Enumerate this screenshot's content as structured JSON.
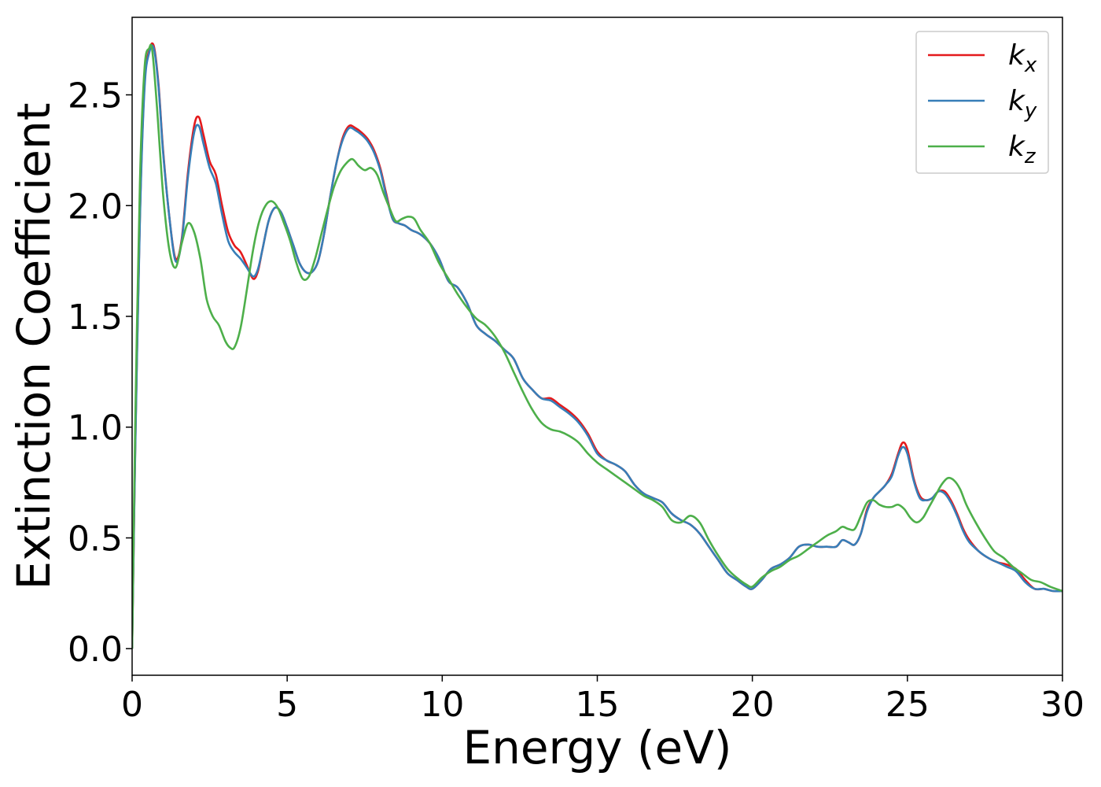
{
  "chart_data": {
    "type": "line",
    "title": "",
    "xlabel": "Energy (eV)",
    "ylabel": "Extinction Coefficient",
    "xlim": [
      0,
      30
    ],
    "ylim": [
      -0.12,
      2.85
    ],
    "xticks": [
      0,
      5,
      10,
      15,
      20,
      25,
      30
    ],
    "xtick_labels": [
      "0",
      "5",
      "10",
      "15",
      "20",
      "25",
      "30"
    ],
    "yticks": [
      0.0,
      0.5,
      1.0,
      1.5,
      2.0,
      2.5
    ],
    "ytick_labels": [
      "0.0",
      "0.5",
      "1.0",
      "1.5",
      "2.0",
      "2.5"
    ],
    "grid": false,
    "legend_position": "top-right",
    "series": [
      {
        "name": "k",
        "name_subscript": "x",
        "color": "#e41a1c",
        "x": [
          0,
          0.1,
          0.25,
          0.4,
          0.55,
          0.7,
          0.85,
          1.0,
          1.2,
          1.4,
          1.6,
          1.8,
          2.0,
          2.15,
          2.3,
          2.5,
          2.7,
          2.9,
          3.1,
          3.3,
          3.5,
          3.7,
          3.9,
          4.05,
          4.2,
          4.4,
          4.6,
          4.8,
          5.0,
          5.2,
          5.4,
          5.6,
          5.8,
          6.0,
          6.2,
          6.4,
          6.6,
          6.8,
          7.0,
          7.2,
          7.4,
          7.6,
          7.8,
          8.0,
          8.2,
          8.4,
          8.6,
          8.8,
          9.0,
          9.3,
          9.6,
          9.9,
          10.2,
          10.5,
          10.8,
          11.1,
          11.4,
          11.7,
          12.0,
          12.3,
          12.6,
          12.9,
          13.2,
          13.5,
          13.8,
          14.1,
          14.4,
          14.7,
          15.0,
          15.3,
          15.6,
          15.9,
          16.2,
          16.5,
          16.8,
          17.1,
          17.4,
          17.7,
          18.0,
          18.3,
          18.6,
          18.9,
          19.2,
          19.5,
          19.8,
          20.0,
          20.3,
          20.6,
          20.9,
          21.2,
          21.5,
          21.8,
          22.1,
          22.4,
          22.7,
          22.9,
          23.1,
          23.3,
          23.5,
          23.7,
          23.9,
          24.1,
          24.3,
          24.5,
          24.7,
          24.85,
          25.0,
          25.2,
          25.4,
          25.6,
          25.8,
          26.0,
          26.2,
          26.4,
          26.6,
          26.8,
          27.0,
          27.3,
          27.6,
          27.9,
          28.2,
          28.5,
          28.8,
          29.1,
          29.4,
          29.7,
          30.0
        ],
        "values": [
          0.0,
          0.9,
          1.95,
          2.55,
          2.7,
          2.72,
          2.55,
          2.25,
          1.95,
          1.76,
          1.85,
          2.15,
          2.36,
          2.4,
          2.32,
          2.2,
          2.14,
          2.0,
          1.88,
          1.82,
          1.79,
          1.73,
          1.67,
          1.7,
          1.8,
          1.93,
          1.99,
          1.97,
          1.9,
          1.82,
          1.74,
          1.7,
          1.7,
          1.75,
          1.88,
          2.05,
          2.2,
          2.31,
          2.36,
          2.35,
          2.33,
          2.3,
          2.25,
          2.17,
          2.05,
          1.94,
          1.92,
          1.91,
          1.89,
          1.87,
          1.83,
          1.76,
          1.66,
          1.63,
          1.56,
          1.46,
          1.42,
          1.39,
          1.35,
          1.31,
          1.22,
          1.17,
          1.13,
          1.13,
          1.1,
          1.07,
          1.03,
          0.97,
          0.89,
          0.85,
          0.83,
          0.8,
          0.74,
          0.7,
          0.68,
          0.66,
          0.61,
          0.58,
          0.56,
          0.52,
          0.46,
          0.4,
          0.34,
          0.31,
          0.28,
          0.27,
          0.31,
          0.36,
          0.38,
          0.41,
          0.46,
          0.47,
          0.46,
          0.46,
          0.46,
          0.49,
          0.48,
          0.47,
          0.52,
          0.63,
          0.68,
          0.71,
          0.74,
          0.79,
          0.88,
          0.93,
          0.9,
          0.77,
          0.69,
          0.67,
          0.68,
          0.71,
          0.71,
          0.67,
          0.61,
          0.54,
          0.49,
          0.44,
          0.41,
          0.39,
          0.38,
          0.36,
          0.31,
          0.27,
          0.27,
          0.26,
          0.26
        ]
      },
      {
        "name": "k",
        "name_subscript": "y",
        "color": "#377eb8",
        "x": [
          0,
          0.1,
          0.25,
          0.4,
          0.55,
          0.7,
          0.85,
          1.0,
          1.2,
          1.4,
          1.6,
          1.8,
          2.0,
          2.15,
          2.3,
          2.5,
          2.7,
          2.9,
          3.1,
          3.3,
          3.5,
          3.7,
          3.9,
          4.05,
          4.2,
          4.4,
          4.6,
          4.8,
          5.0,
          5.2,
          5.4,
          5.6,
          5.8,
          6.0,
          6.2,
          6.4,
          6.6,
          6.8,
          7.0,
          7.2,
          7.4,
          7.6,
          7.8,
          8.0,
          8.2,
          8.4,
          8.6,
          8.8,
          9.0,
          9.3,
          9.6,
          9.9,
          10.2,
          10.5,
          10.8,
          11.1,
          11.4,
          11.7,
          12.0,
          12.3,
          12.6,
          12.9,
          13.2,
          13.5,
          13.8,
          14.1,
          14.4,
          14.7,
          15.0,
          15.3,
          15.6,
          15.9,
          16.2,
          16.5,
          16.8,
          17.1,
          17.4,
          17.7,
          18.0,
          18.3,
          18.6,
          18.9,
          19.2,
          19.5,
          19.8,
          20.0,
          20.3,
          20.6,
          20.9,
          21.2,
          21.5,
          21.8,
          22.1,
          22.4,
          22.7,
          22.9,
          23.1,
          23.3,
          23.5,
          23.7,
          23.9,
          24.1,
          24.3,
          24.5,
          24.7,
          24.85,
          25.0,
          25.2,
          25.4,
          25.6,
          25.8,
          26.0,
          26.2,
          26.4,
          26.6,
          26.8,
          27.0,
          27.3,
          27.6,
          27.9,
          28.2,
          28.5,
          28.8,
          29.1,
          29.4,
          29.7,
          30.0
        ],
        "values": [
          0.0,
          0.88,
          1.93,
          2.53,
          2.69,
          2.71,
          2.54,
          2.24,
          1.95,
          1.75,
          1.84,
          2.13,
          2.33,
          2.36,
          2.28,
          2.17,
          2.1,
          1.96,
          1.84,
          1.79,
          1.76,
          1.72,
          1.68,
          1.71,
          1.8,
          1.93,
          1.99,
          1.97,
          1.9,
          1.82,
          1.74,
          1.7,
          1.7,
          1.75,
          1.88,
          2.05,
          2.2,
          2.3,
          2.35,
          2.34,
          2.32,
          2.29,
          2.24,
          2.16,
          2.04,
          1.94,
          1.92,
          1.91,
          1.89,
          1.87,
          1.83,
          1.76,
          1.66,
          1.63,
          1.56,
          1.46,
          1.42,
          1.39,
          1.35,
          1.31,
          1.22,
          1.17,
          1.13,
          1.12,
          1.09,
          1.06,
          1.02,
          0.96,
          0.88,
          0.85,
          0.83,
          0.8,
          0.74,
          0.7,
          0.68,
          0.66,
          0.61,
          0.58,
          0.56,
          0.52,
          0.46,
          0.4,
          0.34,
          0.31,
          0.28,
          0.27,
          0.31,
          0.36,
          0.38,
          0.41,
          0.46,
          0.47,
          0.46,
          0.46,
          0.46,
          0.49,
          0.48,
          0.47,
          0.52,
          0.62,
          0.68,
          0.71,
          0.74,
          0.78,
          0.87,
          0.91,
          0.88,
          0.76,
          0.68,
          0.67,
          0.68,
          0.71,
          0.7,
          0.66,
          0.6,
          0.53,
          0.48,
          0.44,
          0.41,
          0.39,
          0.37,
          0.35,
          0.3,
          0.27,
          0.27,
          0.26,
          0.26
        ]
      },
      {
        "name": "k",
        "name_subscript": "z",
        "color": "#4daf4a",
        "x": [
          0,
          0.1,
          0.25,
          0.4,
          0.55,
          0.65,
          0.8,
          1.0,
          1.2,
          1.4,
          1.6,
          1.8,
          2.0,
          2.2,
          2.4,
          2.6,
          2.8,
          3.0,
          3.15,
          3.3,
          3.5,
          3.7,
          3.9,
          4.1,
          4.3,
          4.5,
          4.7,
          4.9,
          5.1,
          5.3,
          5.5,
          5.7,
          5.9,
          6.1,
          6.3,
          6.5,
          6.7,
          6.9,
          7.1,
          7.3,
          7.5,
          7.7,
          7.9,
          8.1,
          8.3,
          8.5,
          8.7,
          8.9,
          9.1,
          9.3,
          9.6,
          9.9,
          10.2,
          10.5,
          10.8,
          11.1,
          11.4,
          11.7,
          12.0,
          12.3,
          12.6,
          12.9,
          13.2,
          13.5,
          13.8,
          14.1,
          14.4,
          14.7,
          15.0,
          15.3,
          15.6,
          15.9,
          16.2,
          16.5,
          16.8,
          17.1,
          17.4,
          17.7,
          18.0,
          18.3,
          18.6,
          18.9,
          19.2,
          19.5,
          19.8,
          20.0,
          20.3,
          20.6,
          20.9,
          21.2,
          21.5,
          21.8,
          22.1,
          22.4,
          22.7,
          22.9,
          23.1,
          23.3,
          23.5,
          23.7,
          23.9,
          24.1,
          24.3,
          24.5,
          24.7,
          24.9,
          25.1,
          25.3,
          25.5,
          25.7,
          25.9,
          26.1,
          26.3,
          26.5,
          26.7,
          26.9,
          27.2,
          27.5,
          27.8,
          28.1,
          28.4,
          28.7,
          29.0,
          29.3,
          29.6,
          30.0
        ],
        "values": [
          0.0,
          1.0,
          2.1,
          2.62,
          2.71,
          2.7,
          2.45,
          2.05,
          1.8,
          1.72,
          1.83,
          1.92,
          1.88,
          1.76,
          1.58,
          1.5,
          1.46,
          1.39,
          1.36,
          1.36,
          1.45,
          1.62,
          1.8,
          1.93,
          2.0,
          2.02,
          1.99,
          1.92,
          1.84,
          1.74,
          1.67,
          1.68,
          1.76,
          1.87,
          1.98,
          2.08,
          2.15,
          2.19,
          2.21,
          2.18,
          2.16,
          2.17,
          2.14,
          2.06,
          1.99,
          1.93,
          1.94,
          1.95,
          1.94,
          1.89,
          1.83,
          1.74,
          1.67,
          1.6,
          1.54,
          1.49,
          1.46,
          1.41,
          1.34,
          1.25,
          1.16,
          1.08,
          1.02,
          0.99,
          0.98,
          0.96,
          0.93,
          0.88,
          0.84,
          0.81,
          0.78,
          0.75,
          0.72,
          0.69,
          0.67,
          0.64,
          0.58,
          0.57,
          0.6,
          0.57,
          0.49,
          0.42,
          0.36,
          0.32,
          0.29,
          0.28,
          0.32,
          0.35,
          0.37,
          0.4,
          0.42,
          0.45,
          0.48,
          0.51,
          0.53,
          0.55,
          0.54,
          0.54,
          0.6,
          0.66,
          0.67,
          0.65,
          0.64,
          0.64,
          0.65,
          0.63,
          0.59,
          0.57,
          0.59,
          0.64,
          0.69,
          0.74,
          0.77,
          0.76,
          0.72,
          0.65,
          0.57,
          0.5,
          0.44,
          0.41,
          0.37,
          0.34,
          0.31,
          0.3,
          0.28,
          0.26
        ]
      }
    ]
  }
}
